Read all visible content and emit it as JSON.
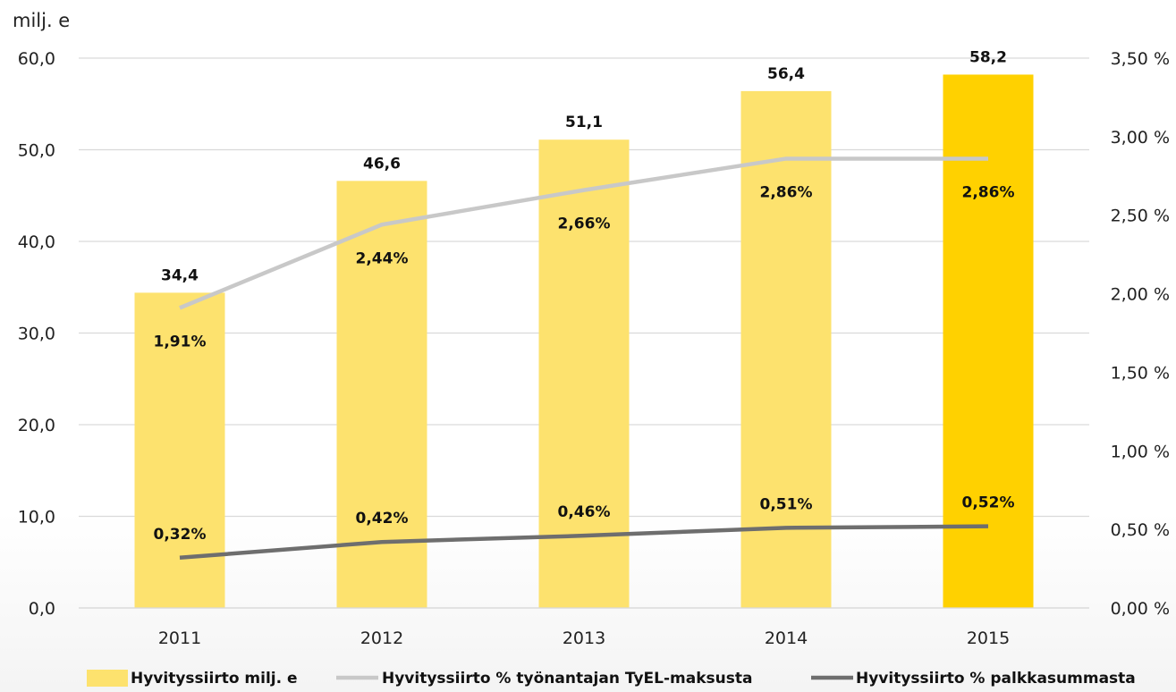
{
  "chart_data": {
    "type": "bar",
    "categories": [
      "2011",
      "2012",
      "2013",
      "2014",
      "2015"
    ],
    "y_unit_label": "milj. e",
    "ylim_left": [
      0,
      60
    ],
    "yticks_left": [
      "0,0",
      "10,0",
      "20,0",
      "30,0",
      "40,0",
      "50,0",
      "60,0"
    ],
    "ylim_right": [
      0,
      3.5
    ],
    "yticks_right": [
      "0,00 %",
      "0,50 %",
      "1,00 %",
      "1,50 %",
      "2,00 %",
      "2,50 %",
      "3,00 %",
      "3,50 %"
    ],
    "grid": true,
    "legend_position": "bottom",
    "series": [
      {
        "name": "Hyvityssiirto milj. e",
        "type": "bar",
        "axis": "left",
        "values": [
          34.4,
          46.6,
          51.1,
          56.4,
          58.2
        ],
        "labels": [
          "34,4",
          "46,6",
          "51,1",
          "56,4",
          "58,2"
        ],
        "color": "#FDE26E",
        "highlight_color": "#FFD100",
        "highlight_index": 4
      },
      {
        "name": "Hyvityssiirto % työnantajan TyEL-maksusta",
        "type": "line",
        "axis": "right",
        "values": [
          1.91,
          2.44,
          2.66,
          2.86,
          2.86
        ],
        "labels": [
          "1,91%",
          "2,44%",
          "2,66%",
          "2,86%",
          "2,86%"
        ],
        "color": "#C8C8C8"
      },
      {
        "name": "Hyvityssiirto % palkkasummasta",
        "type": "line",
        "axis": "right",
        "values": [
          0.32,
          0.42,
          0.46,
          0.51,
          0.52
        ],
        "labels": [
          "0,32%",
          "0,42%",
          "0,46%",
          "0,51%",
          "0,52%"
        ],
        "color": "#6E6E6E"
      }
    ]
  }
}
